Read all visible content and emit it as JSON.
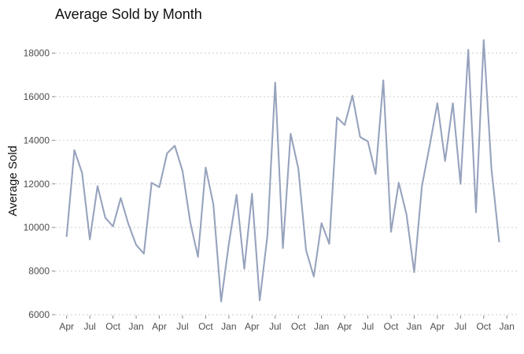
{
  "chart_data": {
    "type": "line",
    "title": "Average Sold by Month",
    "xlabel": "",
    "ylabel": "Average Sold",
    "ylim": [
      6000,
      19000
    ],
    "y_ticks": [
      6000,
      8000,
      10000,
      12000,
      14000,
      16000,
      18000
    ],
    "y_tick_labels": [
      "6000",
      "8000",
      "10000",
      "12000",
      "14000",
      "16000",
      "18000"
    ],
    "x_tick_labels": [
      "Apr",
      "Jul",
      "Oct",
      "Jan",
      "Apr",
      "Jul",
      "Oct",
      "Jan",
      "Apr",
      "Jul",
      "Oct",
      "Jan",
      "Apr",
      "Jul",
      "Oct",
      "Jan",
      "Apr",
      "Jul",
      "Oct",
      "Jan"
    ],
    "x_tick_positions": [
      0,
      3,
      6,
      9,
      12,
      15,
      18,
      21,
      24,
      27,
      30,
      33,
      36,
      39,
      42,
      45,
      48,
      51,
      54,
      57
    ],
    "x_range": [
      -1.5,
      58.3
    ],
    "grid": "horizontal-dotted",
    "line_color": "#97a3bd",
    "series": [
      {
        "x": [
          0,
          1,
          2,
          3,
          4,
          5,
          6,
          7,
          8,
          9,
          10,
          11,
          12,
          13,
          14,
          15,
          16,
          17,
          18,
          19,
          20,
          21,
          22,
          23,
          24,
          25,
          26,
          27,
          28,
          29,
          30,
          31,
          32,
          33,
          34,
          35,
          36,
          37,
          38,
          39,
          40,
          41,
          42,
          43,
          44,
          45,
          46,
          47,
          48,
          49,
          50,
          51,
          52,
          53,
          54,
          55,
          56
        ],
        "values": [
          9600,
          13550,
          12500,
          9450,
          11900,
          10450,
          10050,
          11350,
          10150,
          9200,
          8800,
          12050,
          11850,
          13400,
          13750,
          12600,
          10250,
          8650,
          12750,
          11050,
          6600,
          9250,
          11500,
          8100,
          11550,
          6650,
          9650,
          16650,
          9050,
          14300,
          12700,
          8950,
          7750,
          10200,
          9250,
          15050,
          14700,
          16050,
          14150,
          13950,
          12450,
          16750,
          9800,
          12050,
          10600,
          7950,
          11900,
          13750,
          15700,
          13050,
          15700,
          12000,
          18150,
          10700,
          18600,
          12700,
          9350
        ]
      }
    ]
  }
}
